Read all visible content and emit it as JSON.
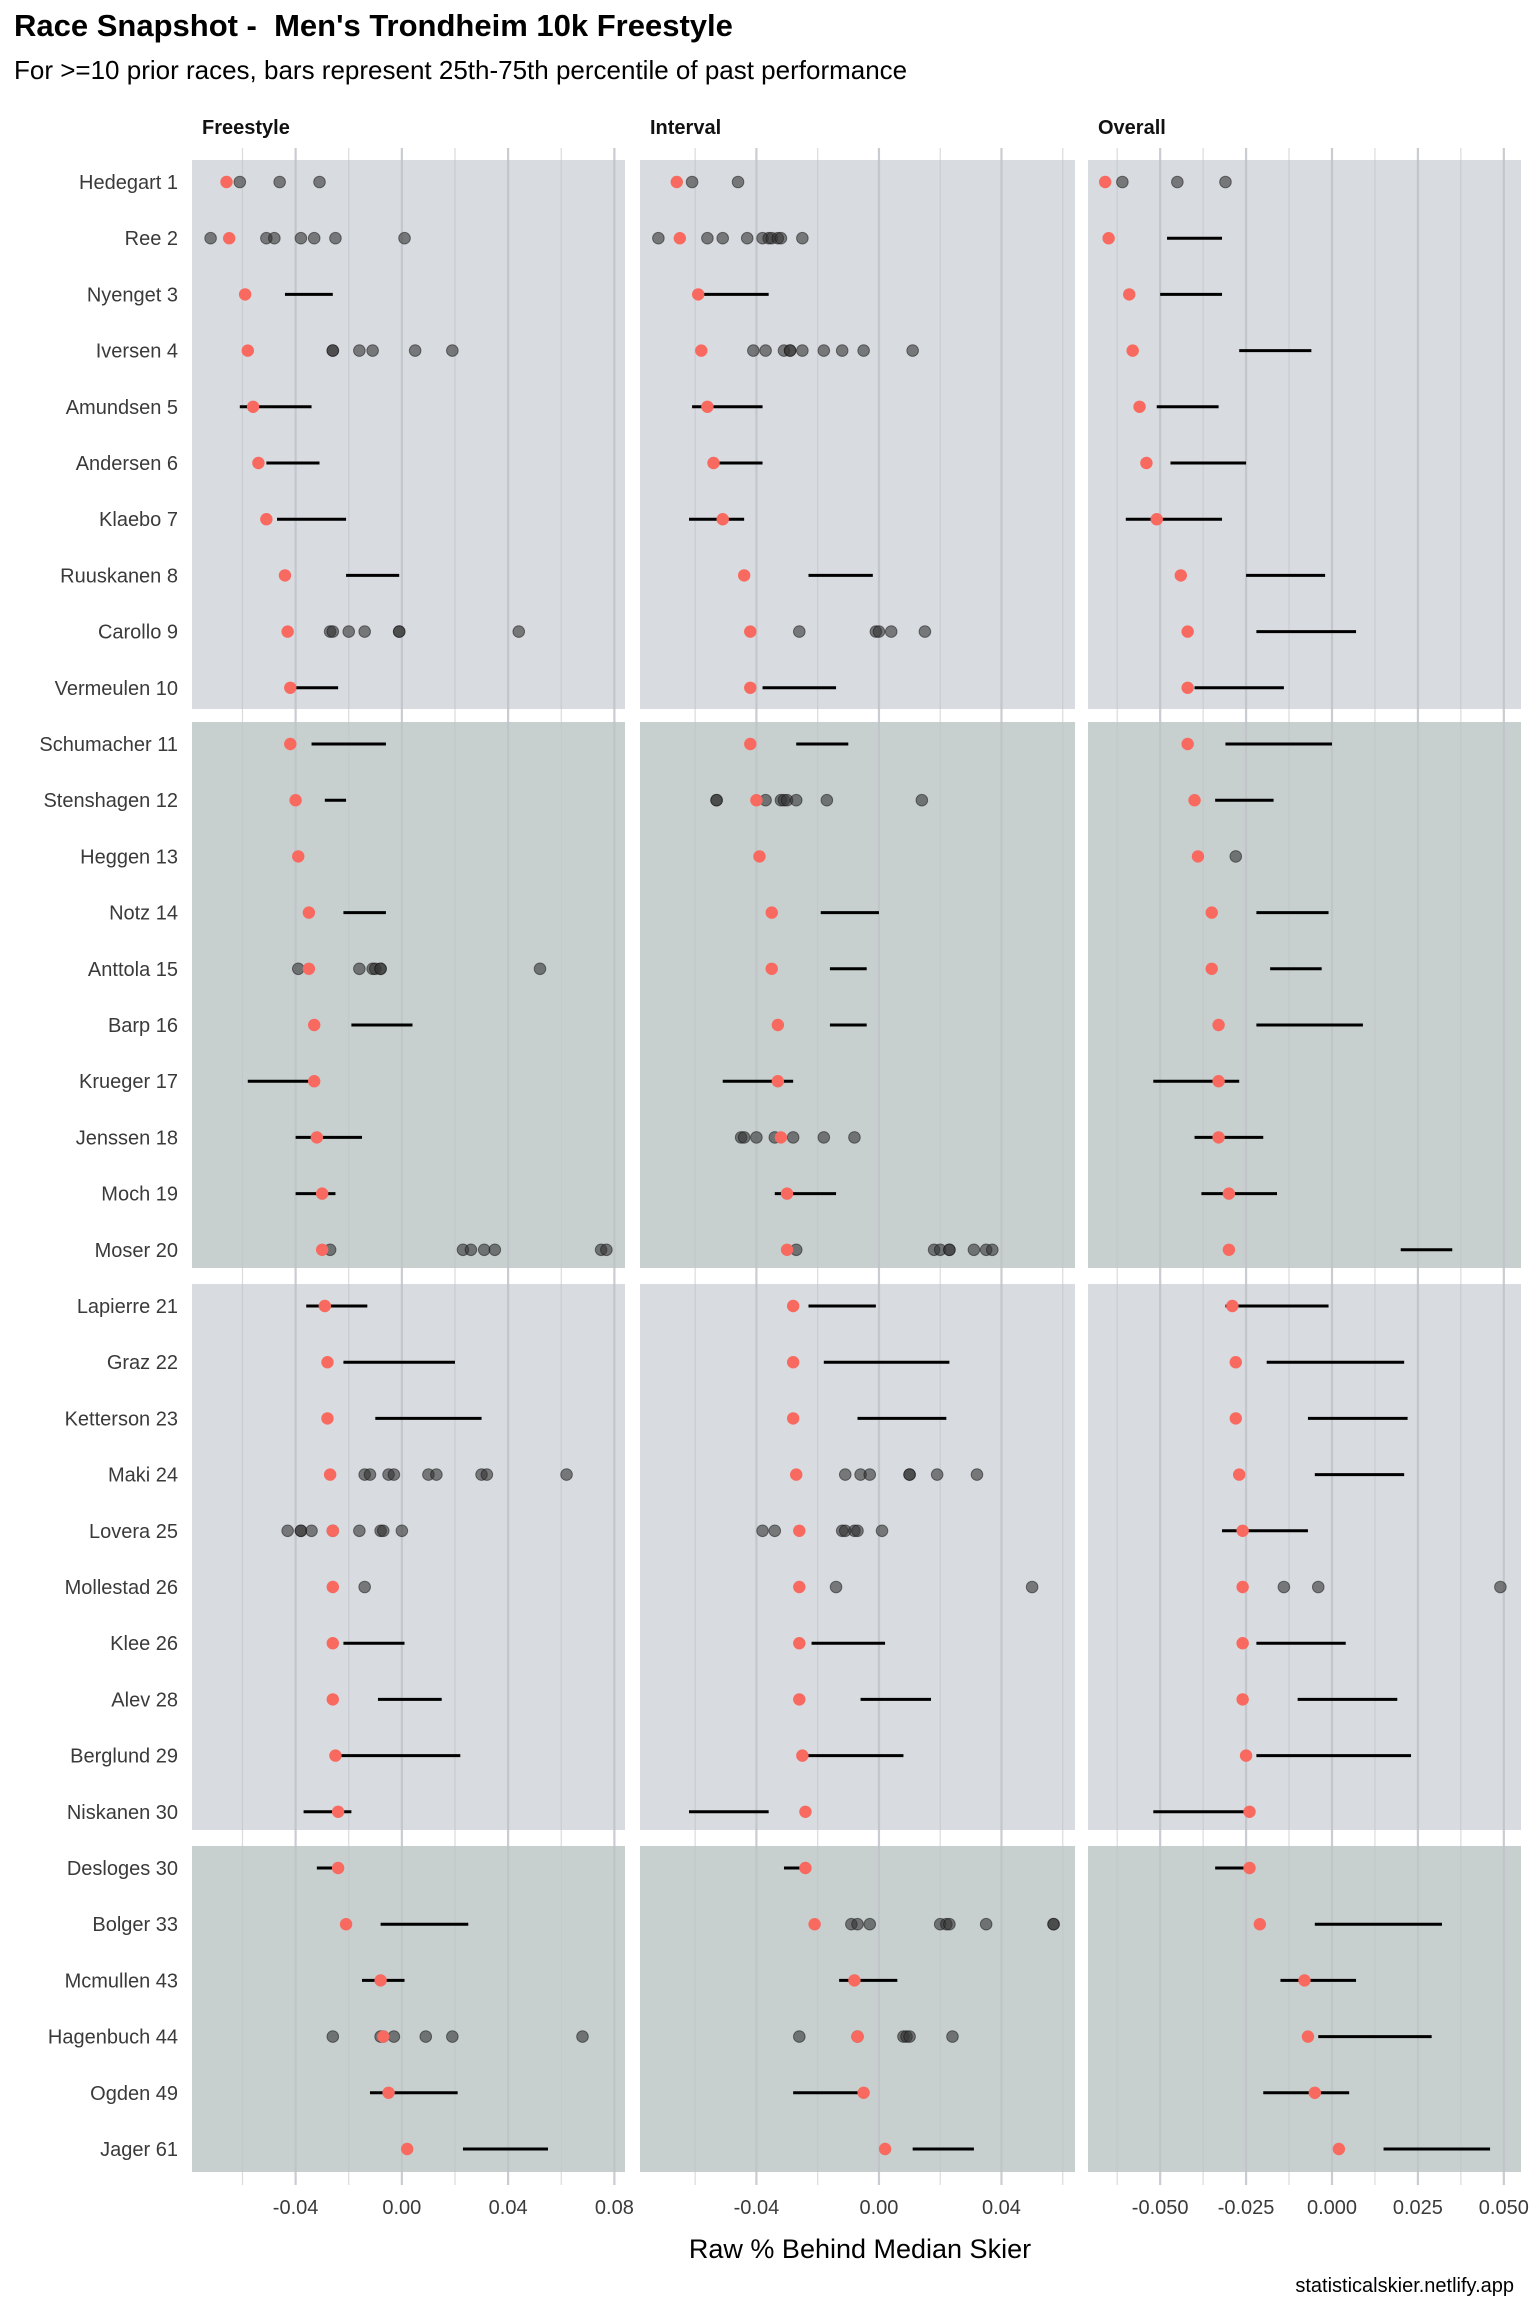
{
  "title": "Race Snapshot -  Men's Trondheim 10k Freestyle",
  "subtitle": "For >=10 prior races, bars represent 25th-75th percentile of past performance",
  "credit": "statisticalskier.netlify.app",
  "colors": {
    "group_a_bg": "#d8dbe0",
    "group_b_bg": "#c8d0cf",
    "expected_point": "#f8695f",
    "history_point": "#333333",
    "bar": "#000000",
    "grid": "#bfc3c8"
  },
  "chart_data": {
    "type": "dot-range",
    "xlabel": "Raw % Behind Median Skier",
    "panels": [
      {
        "name": "Freestyle",
        "xlim": [
          -0.079,
          0.084
        ],
        "ticks": [
          -0.04,
          0.0,
          0.04,
          0.08
        ],
        "tick_labels": [
          "-0.04",
          "0.00",
          "0.04",
          "0.08"
        ],
        "minor": [
          -0.06,
          -0.02,
          0.02,
          0.06
        ]
      },
      {
        "name": "Interval",
        "xlim": [
          -0.078,
          0.064
        ],
        "ticks": [
          -0.04,
          0.0,
          0.04
        ],
        "tick_labels": [
          "-0.04",
          "0.00",
          "0.04"
        ],
        "minor": [
          -0.06,
          -0.02,
          0.02,
          0.06
        ]
      },
      {
        "name": "Overall",
        "xlim": [
          -0.071,
          0.055
        ],
        "ticks": [
          -0.05,
          -0.025,
          0.0,
          0.025,
          0.05
        ],
        "tick_labels": [
          "-0.050",
          "-0.025",
          "0.000",
          "0.025",
          "0.050"
        ],
        "minor": [
          -0.0625,
          -0.0375,
          -0.0125,
          0.0125,
          0.0375
        ]
      }
    ],
    "groups": [
      {
        "rows": [
          0,
          9
        ],
        "shade": "a"
      },
      {
        "rows": [
          10,
          19
        ],
        "shade": "b"
      },
      {
        "rows": [
          20,
          29
        ],
        "shade": "a"
      },
      {
        "rows": [
          30,
          35
        ],
        "shade": "b"
      }
    ],
    "skiers": [
      {
        "label": "Hedegart 1",
        "expected": [
          -0.066,
          -0.066,
          -0.066
        ],
        "bars": [
          null,
          null,
          null
        ],
        "points": [
          [
            -0.061,
            -0.046,
            -0.031
          ],
          [
            -0.061,
            -0.046
          ],
          [
            -0.061,
            -0.045,
            -0.031
          ]
        ]
      },
      {
        "label": "Ree 2",
        "expected": [
          -0.065,
          -0.065,
          -0.065
        ],
        "bars": [
          null,
          null,
          [
            -0.048,
            -0.032
          ]
        ],
        "points": [
          [
            -0.072,
            -0.051,
            -0.048,
            -0.038,
            -0.033,
            -0.025,
            0.001
          ],
          [
            -0.072,
            -0.056,
            -0.051,
            -0.043,
            -0.038,
            -0.036,
            -0.035,
            -0.033,
            -0.032,
            -0.025
          ],
          []
        ]
      },
      {
        "label": "Nyenget 3",
        "expected": [
          -0.059,
          -0.059,
          -0.059
        ],
        "bars": [
          [
            -0.044,
            -0.026
          ],
          [
            -0.059,
            -0.036
          ],
          [
            -0.05,
            -0.032
          ]
        ],
        "points": [
          [],
          [],
          []
        ]
      },
      {
        "label": "Iversen 4",
        "expected": [
          -0.058,
          -0.058,
          -0.058
        ],
        "bars": [
          null,
          null,
          [
            -0.027,
            -0.006
          ]
        ],
        "points": [
          [
            -0.026,
            -0.026,
            -0.016,
            -0.011,
            0.005,
            0.019
          ],
          [
            -0.041,
            -0.037,
            -0.031,
            -0.029,
            -0.029,
            -0.025,
            -0.018,
            -0.012,
            -0.005,
            0.011
          ],
          []
        ]
      },
      {
        "label": "Amundsen 5",
        "expected": [
          -0.056,
          -0.056,
          -0.056
        ],
        "bars": [
          [
            -0.061,
            -0.034
          ],
          [
            -0.061,
            -0.038
          ],
          [
            -0.051,
            -0.033
          ]
        ],
        "points": [
          [],
          [],
          []
        ]
      },
      {
        "label": "Andersen 6",
        "expected": [
          -0.054,
          -0.054,
          -0.054
        ],
        "bars": [
          [
            -0.051,
            -0.031
          ],
          [
            -0.054,
            -0.038
          ],
          [
            -0.047,
            -0.025
          ]
        ],
        "points": [
          [],
          [],
          []
        ]
      },
      {
        "label": "Klaebo 7",
        "expected": [
          -0.051,
          -0.051,
          -0.051
        ],
        "bars": [
          [
            -0.047,
            -0.021
          ],
          [
            -0.062,
            -0.044
          ],
          [
            -0.06,
            -0.032
          ]
        ],
        "points": [
          [],
          [],
          []
        ]
      },
      {
        "label": "Ruuskanen 8",
        "expected": [
          -0.044,
          -0.044,
          -0.044
        ],
        "bars": [
          [
            -0.021,
            -0.001
          ],
          [
            -0.023,
            -0.002
          ],
          [
            -0.025,
            -0.002
          ]
        ],
        "points": [
          [],
          [],
          []
        ]
      },
      {
        "label": "Carollo 9",
        "expected": [
          -0.043,
          -0.042,
          -0.042
        ],
        "bars": [
          null,
          null,
          [
            -0.022,
            0.007
          ]
        ],
        "points": [
          [
            -0.027,
            -0.026,
            -0.02,
            -0.014,
            -0.001,
            -0.001,
            0.044
          ],
          [
            -0.026,
            -0.001,
            0.0,
            0.004,
            0.015
          ],
          []
        ]
      },
      {
        "label": "Vermeulen 10",
        "expected": [
          -0.042,
          -0.042,
          -0.042
        ],
        "bars": [
          [
            -0.04,
            -0.024
          ],
          [
            -0.038,
            -0.014
          ],
          [
            -0.04,
            -0.014
          ]
        ],
        "points": [
          [],
          [],
          []
        ]
      },
      {
        "label": "Schumacher 11",
        "expected": [
          -0.042,
          -0.042,
          -0.042
        ],
        "bars": [
          [
            -0.034,
            -0.006
          ],
          [
            -0.027,
            -0.01
          ],
          [
            -0.031,
            0.0
          ]
        ],
        "points": [
          [],
          [],
          []
        ]
      },
      {
        "label": "Stenshagen 12",
        "expected": [
          -0.04,
          -0.04,
          -0.04
        ],
        "bars": [
          [
            -0.029,
            -0.021
          ],
          null,
          [
            -0.034,
            -0.017
          ]
        ],
        "points": [
          [],
          [
            -0.053,
            -0.053,
            -0.037,
            -0.032,
            -0.031,
            -0.03,
            -0.027,
            -0.017,
            0.014
          ],
          []
        ]
      },
      {
        "label": "Heggen 13",
        "expected": [
          -0.039,
          -0.039,
          -0.039
        ],
        "bars": [
          null,
          null,
          null
        ],
        "points": [
          [],
          [],
          [
            -0.028
          ]
        ]
      },
      {
        "label": "Notz 14",
        "expected": [
          -0.035,
          -0.035,
          -0.035
        ],
        "bars": [
          [
            -0.022,
            -0.006
          ],
          [
            -0.019,
            0.0
          ],
          [
            -0.022,
            -0.001
          ]
        ],
        "points": [
          [],
          [],
          []
        ]
      },
      {
        "label": "Anttola 15",
        "expected": [
          -0.035,
          -0.035,
          -0.035
        ],
        "bars": [
          null,
          [
            -0.016,
            -0.004
          ],
          [
            -0.018,
            -0.003
          ]
        ],
        "points": [
          [
            -0.039,
            -0.016,
            -0.011,
            -0.01,
            -0.008,
            -0.008,
            0.052
          ],
          [],
          []
        ]
      },
      {
        "label": "Barp 16",
        "expected": [
          -0.033,
          -0.033,
          -0.033
        ],
        "bars": [
          [
            -0.019,
            0.004
          ],
          [
            -0.016,
            -0.004
          ],
          [
            -0.022,
            0.009
          ]
        ],
        "points": [
          [],
          [],
          []
        ]
      },
      {
        "label": "Krueger 17",
        "expected": [
          -0.033,
          -0.033,
          -0.033
        ],
        "bars": [
          [
            -0.058,
            -0.033
          ],
          [
            -0.051,
            -0.028
          ],
          [
            -0.052,
            -0.027
          ]
        ],
        "points": [
          [],
          [],
          []
        ]
      },
      {
        "label": "Jenssen 18",
        "expected": [
          -0.032,
          -0.032,
          -0.033
        ],
        "bars": [
          [
            -0.04,
            -0.015
          ],
          null,
          [
            -0.04,
            -0.02
          ]
        ],
        "points": [
          [],
          [
            -0.045,
            -0.044,
            -0.04,
            -0.034,
            -0.028,
            -0.018,
            -0.008
          ],
          []
        ]
      },
      {
        "label": "Moch 19",
        "expected": [
          -0.03,
          -0.03,
          -0.03
        ],
        "bars": [
          [
            -0.04,
            -0.025
          ],
          [
            -0.034,
            -0.014
          ],
          [
            -0.038,
            -0.016
          ]
        ],
        "points": [
          [],
          [],
          []
        ]
      },
      {
        "label": "Moser 20",
        "expected": [
          -0.03,
          -0.03,
          -0.03
        ],
        "bars": [
          null,
          null,
          [
            0.02,
            0.035
          ]
        ],
        "points": [
          [
            -0.027,
            0.023,
            0.026,
            0.031,
            0.035,
            0.075,
            0.077
          ],
          [
            -0.027,
            0.018,
            0.02,
            0.023,
            0.023,
            0.031,
            0.035,
            0.037
          ],
          []
        ]
      },
      {
        "label": "Lapierre 21",
        "expected": [
          -0.029,
          -0.028,
          -0.029
        ],
        "bars": [
          [
            -0.036,
            -0.013
          ],
          [
            -0.023,
            -0.001
          ],
          [
            -0.031,
            -0.001
          ]
        ],
        "points": [
          [],
          [],
          []
        ]
      },
      {
        "label": "Graz 22",
        "expected": [
          -0.028,
          -0.028,
          -0.028
        ],
        "bars": [
          [
            -0.022,
            0.02
          ],
          [
            -0.018,
            0.023
          ],
          [
            -0.019,
            0.021
          ]
        ],
        "points": [
          [],
          [],
          []
        ]
      },
      {
        "label": "Ketterson 23",
        "expected": [
          -0.028,
          -0.028,
          -0.028
        ],
        "bars": [
          [
            -0.01,
            0.03
          ],
          [
            -0.007,
            0.022
          ],
          [
            -0.007,
            0.022
          ]
        ],
        "points": [
          [],
          [],
          []
        ]
      },
      {
        "label": "Maki 24",
        "expected": [
          -0.027,
          -0.027,
          -0.027
        ],
        "bars": [
          null,
          null,
          [
            -0.005,
            0.021
          ]
        ],
        "points": [
          [
            -0.014,
            -0.012,
            -0.005,
            -0.003,
            0.01,
            0.013,
            0.03,
            0.032,
            0.062
          ],
          [
            -0.011,
            -0.006,
            -0.003,
            0.01,
            0.01,
            0.019,
            0.032
          ],
          []
        ]
      },
      {
        "label": "Lovera 25",
        "expected": [
          -0.026,
          -0.026,
          -0.026
        ],
        "bars": [
          null,
          null,
          [
            -0.032,
            -0.007
          ]
        ],
        "points": [
          [
            -0.043,
            -0.038,
            -0.038,
            -0.034,
            -0.026,
            -0.016,
            -0.008,
            -0.007,
            0.0
          ],
          [
            -0.038,
            -0.034,
            -0.012,
            -0.011,
            -0.008,
            -0.007,
            0.001
          ],
          []
        ]
      },
      {
        "label": "Mollestad 26",
        "expected": [
          -0.026,
          -0.026,
          -0.026
        ],
        "bars": [
          null,
          null,
          null
        ],
        "points": [
          [
            -0.014
          ],
          [
            -0.014,
            0.05
          ],
          [
            -0.014,
            -0.004,
            0.049
          ]
        ]
      },
      {
        "label": "Klee 26",
        "expected": [
          -0.026,
          -0.026,
          -0.026
        ],
        "bars": [
          [
            -0.022,
            0.001
          ],
          [
            -0.022,
            0.002
          ],
          [
            -0.022,
            0.004
          ]
        ],
        "points": [
          [],
          [],
          []
        ]
      },
      {
        "label": "Alev 28",
        "expected": [
          -0.026,
          -0.026,
          -0.026
        ],
        "bars": [
          [
            -0.009,
            0.015
          ],
          [
            -0.006,
            0.017
          ],
          [
            -0.01,
            0.019
          ]
        ],
        "points": [
          [],
          [],
          []
        ]
      },
      {
        "label": "Berglund 29",
        "expected": [
          -0.025,
          -0.025,
          -0.025
        ],
        "bars": [
          [
            -0.025,
            0.022
          ],
          [
            -0.025,
            0.008
          ],
          [
            -0.022,
            0.023
          ]
        ],
        "points": [
          [],
          [],
          []
        ]
      },
      {
        "label": "Niskanen 30",
        "expected": [
          -0.024,
          -0.024,
          -0.024
        ],
        "bars": [
          [
            -0.037,
            -0.019
          ],
          [
            -0.062,
            -0.036
          ],
          [
            -0.052,
            -0.024
          ]
        ],
        "points": [
          [],
          [],
          []
        ]
      },
      {
        "label": "Desloges 30",
        "expected": [
          -0.024,
          -0.024,
          -0.024
        ],
        "bars": [
          [
            -0.032,
            -0.024
          ],
          [
            -0.031,
            -0.024
          ],
          [
            -0.034,
            -0.024
          ]
        ],
        "points": [
          [],
          [],
          []
        ]
      },
      {
        "label": "Bolger 33",
        "expected": [
          -0.021,
          -0.021,
          -0.021
        ],
        "bars": [
          [
            -0.008,
            0.025
          ],
          null,
          [
            -0.005,
            0.032
          ]
        ],
        "points": [
          [],
          [
            -0.009,
            -0.007,
            -0.003,
            0.02,
            0.022,
            0.023,
            0.035,
            0.057,
            0.057
          ],
          []
        ]
      },
      {
        "label": "Mcmullen 43",
        "expected": [
          -0.008,
          -0.008,
          -0.008
        ],
        "bars": [
          [
            -0.015,
            0.001
          ],
          [
            -0.013,
            0.006
          ],
          [
            -0.015,
            0.007
          ]
        ],
        "points": [
          [],
          [],
          []
        ]
      },
      {
        "label": "Hagenbuch 44",
        "expected": [
          -0.007,
          -0.007,
          -0.007
        ],
        "bars": [
          null,
          null,
          [
            -0.004,
            0.029
          ]
        ],
        "points": [
          [
            -0.026,
            -0.008,
            -0.007,
            -0.003,
            0.009,
            0.019,
            0.068
          ],
          [
            -0.026,
            -0.007,
            0.008,
            0.009,
            0.01,
            0.024
          ],
          []
        ]
      },
      {
        "label": "Ogden 49",
        "expected": [
          -0.005,
          -0.005,
          -0.005
        ],
        "bars": [
          [
            -0.012,
            0.021
          ],
          [
            -0.028,
            -0.005
          ],
          [
            -0.02,
            0.005
          ]
        ],
        "points": [
          [],
          [],
          []
        ]
      },
      {
        "label": "Jager 61",
        "expected": [
          0.002,
          0.002,
          0.002
        ],
        "bars": [
          [
            0.023,
            0.055
          ],
          [
            0.011,
            0.031
          ],
          [
            0.015,
            0.046
          ]
        ],
        "points": [
          [],
          [],
          []
        ]
      }
    ]
  }
}
